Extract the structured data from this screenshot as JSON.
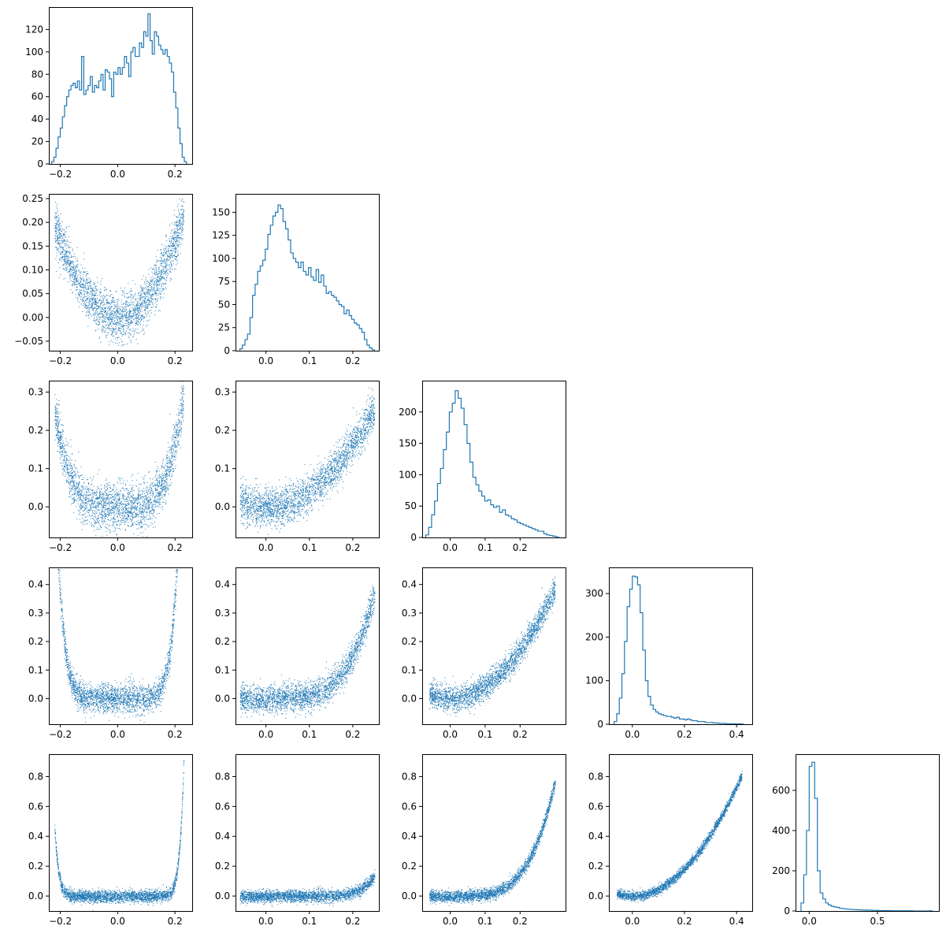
{
  "figure": {
    "type": "corner-plot",
    "variables": 5,
    "color": "#1f77b4",
    "background": "#ffffff",
    "grid": false,
    "legend": "none"
  },
  "chart_data": [
    {
      "id": "hist-0",
      "row": 0,
      "col": 0,
      "type": "histogram",
      "xlim": [
        -0.24,
        0.26
      ],
      "ylim": [
        0,
        140
      ],
      "xticks": [
        -0.2,
        0.0,
        0.2
      ],
      "xtick_labels": [
        "−0.2",
        "0.0",
        "0.2"
      ],
      "yticks": [
        0,
        20,
        40,
        60,
        80,
        100,
        120
      ],
      "ytick_labels": [
        "0",
        "20",
        "40",
        "60",
        "80",
        "100",
        "120"
      ],
      "bin_range": [
        -0.23,
        0.24
      ],
      "counts": [
        2,
        6,
        14,
        24,
        32,
        42,
        52,
        60,
        66,
        70,
        72,
        68,
        74,
        66,
        96,
        62,
        66,
        70,
        78,
        64,
        70,
        68,
        74,
        80,
        66,
        84,
        82,
        76,
        60,
        82,
        80,
        86,
        80,
        86,
        96,
        90,
        78,
        100,
        104,
        96,
        96,
        108,
        104,
        118,
        114,
        134,
        110,
        98,
        118,
        114,
        106,
        102,
        98,
        102,
        96,
        90,
        82,
        64,
        50,
        32,
        18,
        6,
        2
      ]
    },
    {
      "id": "scatter-1-0",
      "row": 1,
      "col": 0,
      "type": "scatter",
      "xlim": [
        -0.24,
        0.26
      ],
      "ylim": [
        -0.07,
        0.26
      ],
      "xticks": [
        -0.2,
        0.0,
        0.2
      ],
      "xtick_labels": [
        "−0.2",
        "0.0",
        "0.2"
      ],
      "yticks": [
        -0.05,
        0.0,
        0.05,
        0.1,
        0.15,
        0.2,
        0.25
      ],
      "ytick_labels": [
        "−0.05",
        "0.00",
        "0.05",
        "0.10",
        "0.15",
        "0.20",
        "0.25"
      ],
      "relation": "parabola",
      "x_range": [
        -0.22,
        0.23
      ],
      "y_formula": "x^2*4",
      "noise": 0.025,
      "y_floor": -0.06,
      "points": 2600
    },
    {
      "id": "hist-1",
      "row": 1,
      "col": 1,
      "type": "histogram",
      "xlim": [
        -0.07,
        0.26
      ],
      "ylim": [
        0,
        170
      ],
      "xticks": [
        0.0,
        0.1,
        0.2
      ],
      "xtick_labels": [
        "0.0",
        "0.1",
        "0.2"
      ],
      "yticks": [
        0,
        25,
        50,
        75,
        100,
        125,
        150
      ],
      "ytick_labels": [
        "0",
        "25",
        "50",
        "75",
        "100",
        "125",
        "150"
      ],
      "bin_range": [
        -0.06,
        0.25
      ],
      "counts": [
        2,
        6,
        12,
        18,
        36,
        60,
        72,
        86,
        92,
        98,
        110,
        126,
        136,
        146,
        150,
        158,
        154,
        140,
        132,
        120,
        106,
        100,
        96,
        90,
        96,
        86,
        82,
        90,
        80,
        76,
        88,
        74,
        82,
        70,
        62,
        64,
        60,
        58,
        54,
        50,
        48,
        40,
        44,
        38,
        34,
        30,
        28,
        24,
        20,
        12,
        6,
        3,
        1
      ]
    },
    {
      "id": "scatter-2-0",
      "row": 2,
      "col": 0,
      "type": "scatter",
      "xlim": [
        -0.24,
        0.26
      ],
      "ylim": [
        -0.08,
        0.33
      ],
      "xticks": [
        -0.2,
        0.0,
        0.2
      ],
      "xtick_labels": [
        "−0.2",
        "0.0",
        "0.2"
      ],
      "yticks": [
        0.0,
        0.1,
        0.2,
        0.3
      ],
      "ytick_labels": [
        "0.0",
        "0.1",
        "0.2",
        "0.3"
      ],
      "relation": "u-shape",
      "x_range": [
        -0.22,
        0.23
      ],
      "y_formula": "x^4*105",
      "noise": 0.03,
      "points": 2600
    },
    {
      "id": "scatter-2-1",
      "row": 2,
      "col": 1,
      "type": "scatter",
      "xlim": [
        -0.07,
        0.26
      ],
      "ylim": [
        -0.08,
        0.33
      ],
      "xticks": [
        0.0,
        0.1,
        0.2
      ],
      "xtick_labels": [
        "0.0",
        "0.1",
        "0.2"
      ],
      "yticks": [
        0.0,
        0.1,
        0.2,
        0.3
      ],
      "ytick_labels": [
        "0.0",
        "0.1",
        "0.2",
        "0.3"
      ],
      "relation": "convex",
      "x_range": [
        -0.06,
        0.25
      ],
      "y_formula": "x^2*4.1",
      "noise": 0.025,
      "points": 2600
    },
    {
      "id": "hist-2",
      "row": 2,
      "col": 2,
      "type": "histogram",
      "xlim": [
        -0.08,
        0.33
      ],
      "ylim": [
        0,
        250
      ],
      "xticks": [
        0.0,
        0.1,
        0.2
      ],
      "xtick_labels": [
        "0.0",
        "0.1",
        "0.2"
      ],
      "yticks": [
        0,
        50,
        100,
        150,
        200
      ],
      "ytick_labels": [
        "0",
        "50",
        "100",
        "150",
        "200"
      ],
      "bin_range": [
        -0.07,
        0.31
      ],
      "counts": [
        4,
        16,
        36,
        58,
        86,
        110,
        140,
        168,
        200,
        214,
        234,
        222,
        206,
        180,
        150,
        120,
        96,
        84,
        74,
        66,
        58,
        60,
        52,
        48,
        50,
        40,
        44,
        36,
        34,
        30,
        28,
        24,
        22,
        20,
        18,
        16,
        14,
        12,
        10,
        10,
        6,
        4,
        3,
        2,
        1
      ]
    },
    {
      "id": "scatter-3-0",
      "row": 3,
      "col": 0,
      "type": "scatter",
      "xlim": [
        -0.24,
        0.26
      ],
      "ylim": [
        -0.09,
        0.46
      ],
      "xticks": [
        -0.2,
        0.0,
        0.2
      ],
      "xtick_labels": [
        "−0.2",
        "0.0",
        "0.2"
      ],
      "yticks": [
        0.0,
        0.1,
        0.2,
        0.3,
        0.4
      ],
      "ytick_labels": [
        "0.0",
        "0.1",
        "0.2",
        "0.3",
        "0.4"
      ],
      "relation": "u-shape",
      "x_range": [
        -0.22,
        0.23
      ],
      "y_formula": "x^8*1.4e5",
      "noise": 0.025,
      "points": 2600
    },
    {
      "id": "scatter-3-1",
      "row": 3,
      "col": 1,
      "type": "scatter",
      "xlim": [
        -0.07,
        0.26
      ],
      "ylim": [
        -0.09,
        0.46
      ],
      "xticks": [
        0.0,
        0.1,
        0.2
      ],
      "xtick_labels": [
        "0.0",
        "0.1",
        "0.2"
      ],
      "yticks": [
        0.0,
        0.1,
        0.2,
        0.3,
        0.4
      ],
      "ytick_labels": [
        "0.0",
        "0.1",
        "0.2",
        "0.3",
        "0.4"
      ],
      "relation": "convex",
      "x_range": [
        -0.06,
        0.25
      ],
      "y_formula": "x^4*95",
      "noise": 0.025,
      "points": 2600
    },
    {
      "id": "scatter-3-2",
      "row": 3,
      "col": 2,
      "type": "scatter",
      "xlim": [
        -0.08,
        0.33
      ],
      "ylim": [
        -0.09,
        0.46
      ],
      "xticks": [
        0.0,
        0.1,
        0.2
      ],
      "xtick_labels": [
        "0.0",
        "0.1",
        "0.2"
      ],
      "yticks": [
        0.0,
        0.1,
        0.2,
        0.3,
        0.4
      ],
      "ytick_labels": [
        "0.0",
        "0.1",
        "0.2",
        "0.3",
        "0.4"
      ],
      "relation": "convex",
      "x_range": [
        -0.06,
        0.3
      ],
      "y_formula": "x^2*4.3",
      "noise": 0.022,
      "points": 2600
    },
    {
      "id": "hist-3",
      "row": 3,
      "col": 3,
      "type": "histogram",
      "xlim": [
        -0.09,
        0.46
      ],
      "ylim": [
        0,
        360
      ],
      "xticks": [
        0.0,
        0.2,
        0.4
      ],
      "xtick_labels": [
        "0.0",
        "0.2",
        "0.4"
      ],
      "yticks": [
        0,
        100,
        200,
        300
      ],
      "ytick_labels": [
        "0",
        "100",
        "200",
        "300"
      ],
      "bin_range": [
        -0.07,
        0.43
      ],
      "counts": [
        6,
        24,
        60,
        116,
        190,
        270,
        310,
        340,
        338,
        320,
        256,
        170,
        100,
        64,
        44,
        34,
        28,
        24,
        22,
        20,
        18,
        18,
        16,
        14,
        16,
        12,
        12,
        10,
        12,
        10,
        8,
        8,
        6,
        6,
        6,
        4,
        4,
        4,
        3,
        3,
        2,
        2,
        2,
        1,
        1,
        1,
        1,
        1,
        1,
        0
      ]
    },
    {
      "id": "scatter-4-0",
      "row": 4,
      "col": 0,
      "type": "scatter",
      "xlim": [
        -0.24,
        0.26
      ],
      "ylim": [
        -0.1,
        0.95
      ],
      "xticks": [
        -0.2,
        0.0,
        0.2
      ],
      "xtick_labels": [
        "−0.2",
        "0.0",
        "0.2"
      ],
      "yticks": [
        0.0,
        0.2,
        0.4,
        0.6,
        0.8
      ],
      "ytick_labels": [
        "0.0",
        "0.2",
        "0.4",
        "0.6",
        "0.8"
      ],
      "relation": "u-shape",
      "x_range": [
        -0.22,
        0.23
      ],
      "y_formula": "x^16*1.5e10",
      "noise": 0.02,
      "points": 2600
    },
    {
      "id": "scatter-4-1",
      "row": 4,
      "col": 1,
      "type": "scatter",
      "xlim": [
        -0.07,
        0.26
      ],
      "ylim": [
        -0.1,
        0.95
      ],
      "xticks": [
        0.0,
        0.1,
        0.2
      ],
      "xtick_labels": [
        "0.0",
        "0.1",
        "0.2"
      ],
      "yticks": [
        0.0,
        0.2,
        0.4,
        0.6,
        0.8
      ],
      "ytick_labels": [
        "0.0",
        "0.2",
        "0.4",
        "0.6",
        "0.8"
      ],
      "relation": "convex",
      "x_range": [
        -0.06,
        0.25
      ],
      "y_formula": "x^8*9000",
      "noise": 0.02,
      "points": 2600
    },
    {
      "id": "scatter-4-2",
      "row": 4,
      "col": 2,
      "type": "scatter",
      "xlim": [
        -0.08,
        0.33
      ],
      "ylim": [
        -0.1,
        0.95
      ],
      "xticks": [
        0.0,
        0.1,
        0.2
      ],
      "xtick_labels": [
        "0.0",
        "0.1",
        "0.2"
      ],
      "yticks": [
        0.0,
        0.2,
        0.4,
        0.6,
        0.8
      ],
      "ytick_labels": [
        "0.0",
        "0.2",
        "0.4",
        "0.6",
        "0.8"
      ],
      "relation": "convex",
      "x_range": [
        -0.06,
        0.3
      ],
      "y_formula": "x^4*95",
      "noise": 0.02,
      "points": 2600
    },
    {
      "id": "scatter-4-3",
      "row": 4,
      "col": 3,
      "type": "scatter",
      "xlim": [
        -0.09,
        0.46
      ],
      "ylim": [
        -0.1,
        0.95
      ],
      "xticks": [
        0.0,
        0.2,
        0.4
      ],
      "xtick_labels": [
        "0.0",
        "0.2",
        "0.4"
      ],
      "yticks": [
        0.0,
        0.2,
        0.4,
        0.6,
        0.8
      ],
      "ytick_labels": [
        "0.0",
        "0.2",
        "0.4",
        "0.6",
        "0.8"
      ],
      "relation": "convex",
      "x_range": [
        -0.06,
        0.42
      ],
      "y_formula": "x^2*4.6",
      "noise": 0.015,
      "points": 2600
    },
    {
      "id": "hist-4",
      "row": 4,
      "col": 4,
      "type": "histogram",
      "xlim": [
        -0.1,
        0.95
      ],
      "ylim": [
        0,
        780
      ],
      "xticks": [
        0.0,
        0.5
      ],
      "xtick_labels": [
        "0.0",
        "0.5"
      ],
      "yticks": [
        0,
        200,
        400,
        600
      ],
      "ytick_labels": [
        "0",
        "200",
        "400",
        "600"
      ],
      "bin_range": [
        -0.06,
        0.9
      ],
      "counts": [
        40,
        180,
        400,
        720,
        740,
        560,
        200,
        90,
        60,
        40,
        30,
        24,
        20,
        18,
        14,
        12,
        10,
        9,
        8,
        7,
        6,
        6,
        5,
        5,
        4,
        4,
        3,
        3,
        3,
        2,
        2,
        2,
        2,
        1,
        1,
        1,
        1,
        1,
        1,
        1,
        1,
        0,
        0,
        0,
        0,
        0,
        0,
        1
      ]
    }
  ]
}
